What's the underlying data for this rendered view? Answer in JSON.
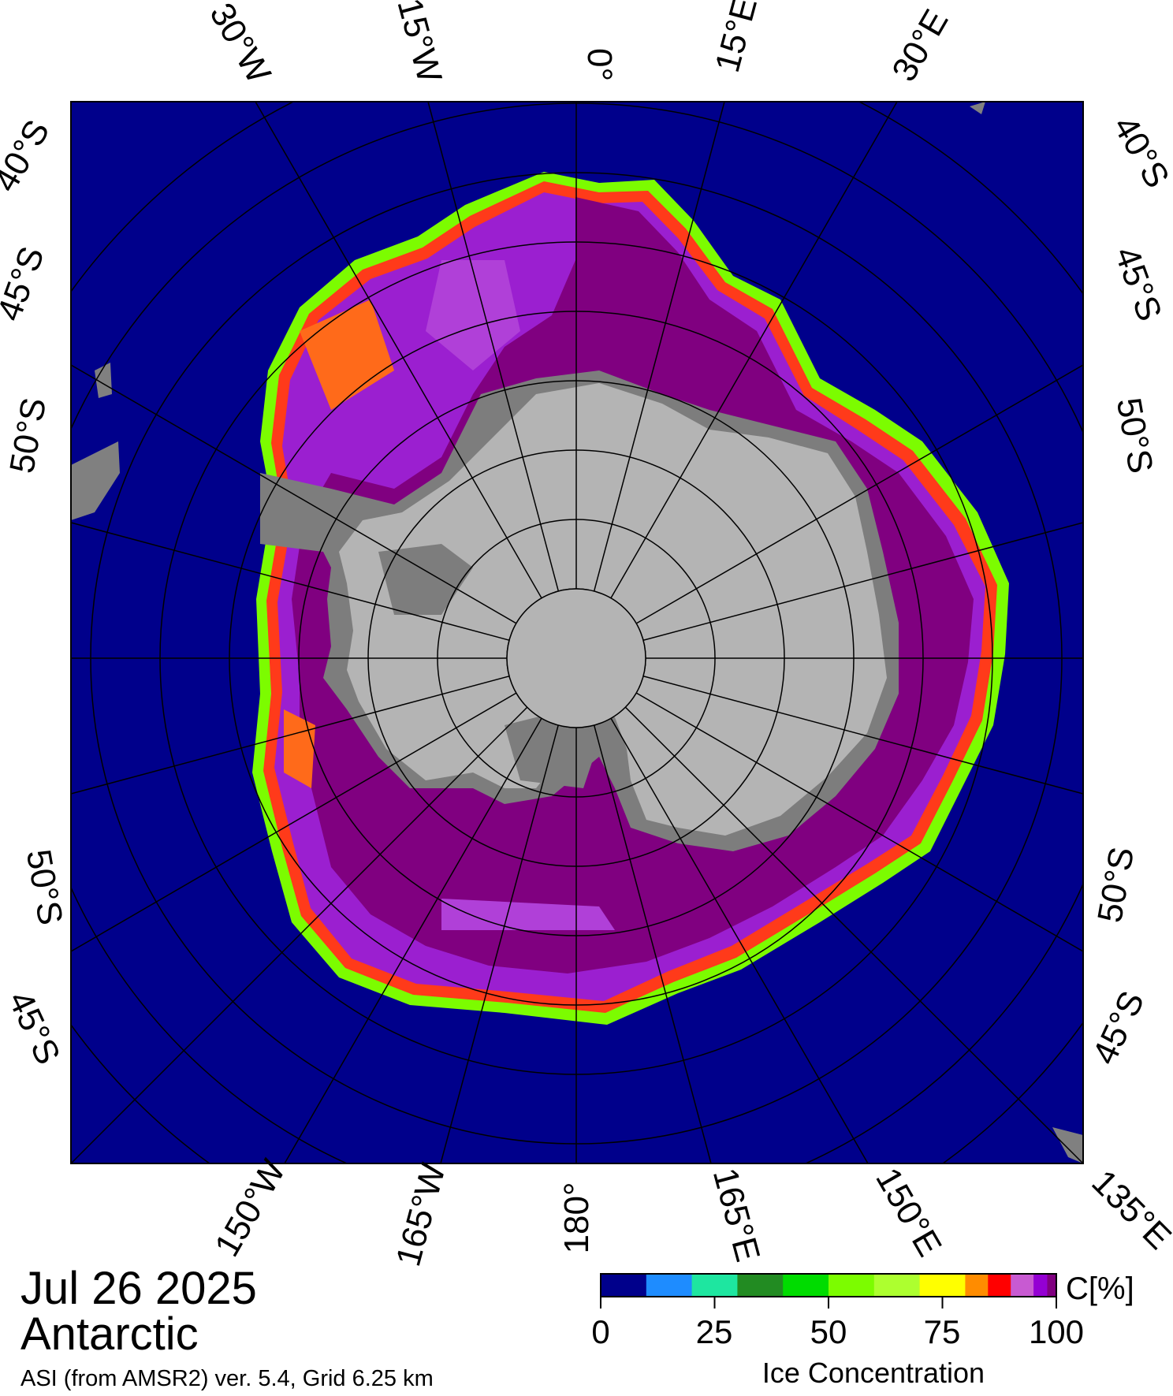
{
  "map": {
    "date": "Jul 26 2025",
    "region": "Antarctic",
    "source": "ASI (from AMSR2) ver. 5.4,  Grid 6.25 km",
    "colors": {
      "ocean": "#00008b",
      "land": "#b4b4b4",
      "ice_shelf": "#7d7d7d",
      "outer_land": "#808080"
    },
    "longitude_labels": {
      "top": [
        "30°W",
        "15°W",
        "0°",
        "15°E",
        "30°E"
      ],
      "bottom": [
        "150°W",
        "165°W",
        "180°",
        "165°E",
        "150°E",
        "135°E"
      ]
    },
    "latitude_labels": {
      "left": [
        "40°S",
        "45°S",
        "50°S",
        "50°S",
        "45°S"
      ],
      "right": [
        "40°S",
        "45°S",
        "50°S",
        "50°S",
        "45°S"
      ]
    }
  },
  "colorbar": {
    "unit": "C[%]",
    "title": "Ice Concentration",
    "ticks": [
      "0",
      "25",
      "50",
      "75",
      "100"
    ],
    "colors": [
      "#00008b",
      "#1e8cff",
      "#1ee6a0",
      "#228b22",
      "#00dc00",
      "#7cfc00",
      "#adff2f",
      "#ffff00",
      "#ff8c00",
      "#ff0000",
      "#c85ad2",
      "#9400d3",
      "#800080"
    ]
  }
}
